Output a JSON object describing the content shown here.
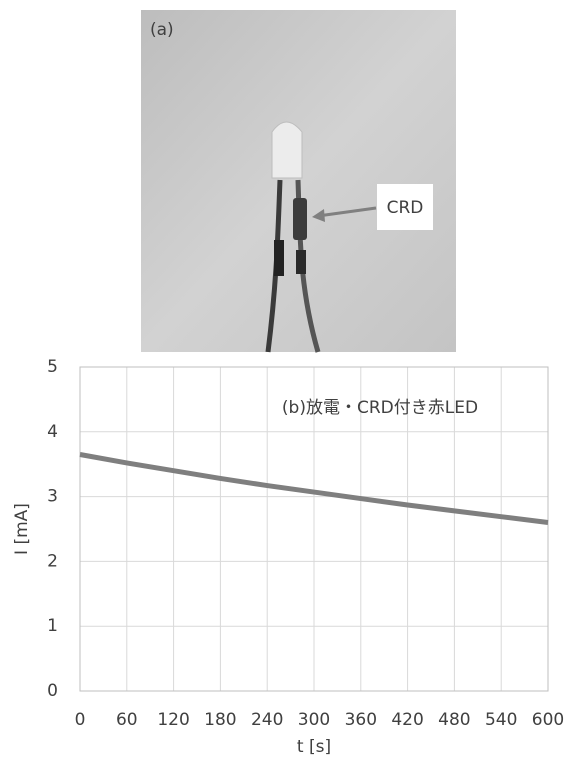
{
  "photo": {
    "label": "(a)",
    "callout": "CRD"
  },
  "chart_data": {
    "type": "line",
    "annotation": "(b)放電・CRD付き赤LED",
    "xlabel": "t [s]",
    "ylabel": "I [mA]",
    "x": [
      0,
      60,
      120,
      180,
      240,
      300,
      360,
      420,
      480,
      540,
      600
    ],
    "values": [
      3.65,
      3.52,
      3.4,
      3.28,
      3.17,
      3.07,
      2.97,
      2.87,
      2.78,
      2.69,
      2.6
    ],
    "color": "#7f7f7f",
    "xlim": [
      0,
      600
    ],
    "xticks": [
      0,
      60,
      120,
      180,
      240,
      300,
      360,
      420,
      480,
      540,
      600
    ],
    "ylim": [
      0,
      5
    ],
    "yticks": [
      0,
      1,
      2,
      3,
      4,
      5
    ],
    "grid": true
  }
}
